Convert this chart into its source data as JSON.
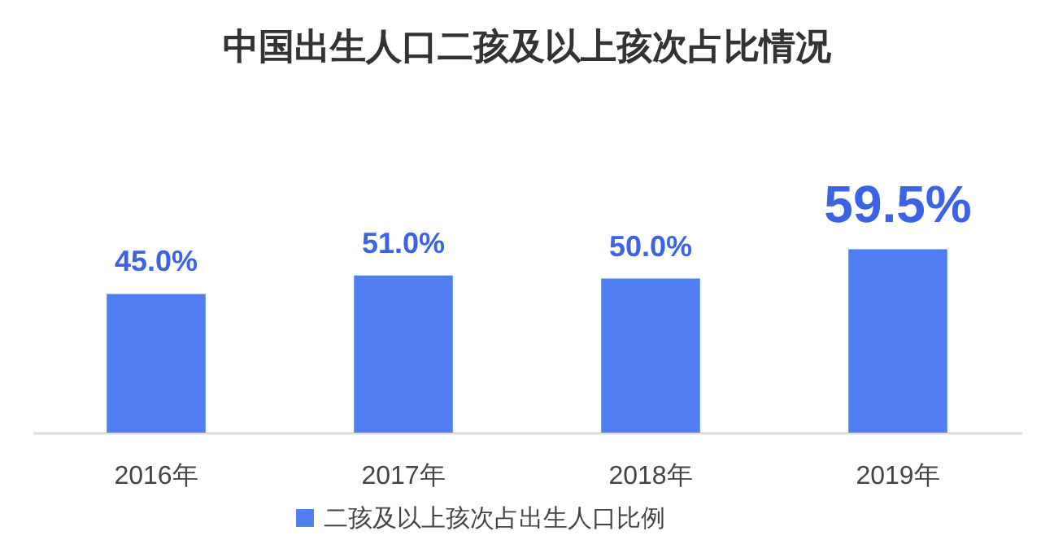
{
  "chart_data": {
    "type": "bar",
    "title": "中国出生人口二孩及以上孩次占比情况",
    "categories": [
      "2016年",
      "2017年",
      "2018年",
      "2019年"
    ],
    "series": [
      {
        "name": "二孩及以上孩次占出生人口比例",
        "color": "#4f7ef2",
        "values": [
          45.0,
          51.0,
          50.0,
          59.5
        ],
        "value_labels": [
          "45.0%",
          "51.0%",
          "50.0%",
          "59.5%"
        ]
      }
    ],
    "legend": "bottom"
  }
}
